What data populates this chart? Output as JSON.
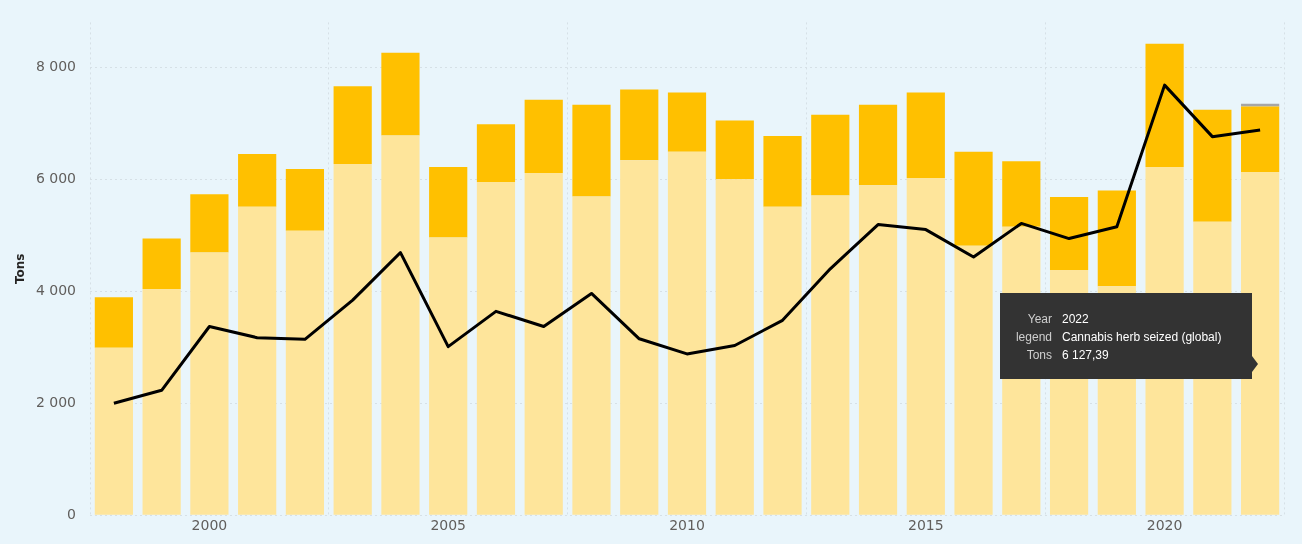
{
  "chart_data": {
    "type": "bar",
    "stacked": true,
    "ylabel": "Tons",
    "x": [
      1998,
      1999,
      2000,
      2001,
      2002,
      2003,
      2004,
      2005,
      2006,
      2007,
      2008,
      2009,
      2010,
      2011,
      2012,
      2013,
      2014,
      2015,
      2016,
      2017,
      2018,
      2019,
      2020,
      2021,
      2022
    ],
    "xlim": [
      1997.5,
      2022.5
    ],
    "xticks": [
      2000,
      2005,
      2010,
      2015,
      2020
    ],
    "ylim": [
      0,
      8800
    ],
    "yticks": [
      0,
      {
        "value": 2000,
        "label": "2 000"
      },
      {
        "value": 4000,
        "label": "4 000"
      },
      {
        "value": 6000,
        "label": "6 000"
      },
      {
        "value": 8000,
        "label": "8 000"
      }
    ],
    "grid": true,
    "legend": false,
    "marker": "none",
    "line_style": "solid",
    "series": [
      {
        "color": "#fee59b",
        "values": [
          2990,
          4040,
          4690,
          5510,
          5080,
          6270,
          6780,
          4960,
          5950,
          6110,
          5690,
          6340,
          6490,
          6000,
          5510,
          5710,
          5890,
          6020,
          4810,
          5150,
          4380,
          4090,
          6220,
          5240,
          6127.39
        ]
      },
      {
        "color": "#ffc000",
        "values": [
          900,
          900,
          1040,
          940,
          1100,
          1390,
          1480,
          1260,
          1030,
          1310,
          1640,
          1260,
          1060,
          1050,
          1260,
          1440,
          1440,
          1530,
          1680,
          1170,
          1300,
          1710,
          2200,
          2000,
          1170
        ]
      },
      {
        "color": "#a6a6a6",
        "values": [
          null,
          null,
          null,
          null,
          null,
          null,
          null,
          null,
          null,
          null,
          null,
          null,
          null,
          null,
          null,
          null,
          null,
          null,
          null,
          null,
          null,
          null,
          null,
          null,
          50
        ]
      },
      {
        "type": "line",
        "color": "#000000",
        "values": [
          2000,
          2230,
          3370,
          3170,
          3140,
          3840,
          4690,
          3010,
          3640,
          3370,
          3960,
          3150,
          2880,
          3030,
          3480,
          4400,
          5190,
          5100,
          4610,
          5210,
          4940,
          5150,
          7680,
          6760,
          6880
        ]
      }
    ],
    "annotations": [
      "Year",
      "2022",
      "legend",
      "Cannabis herb seized (global)",
      "Tons",
      "6 127,39"
    ]
  }
}
